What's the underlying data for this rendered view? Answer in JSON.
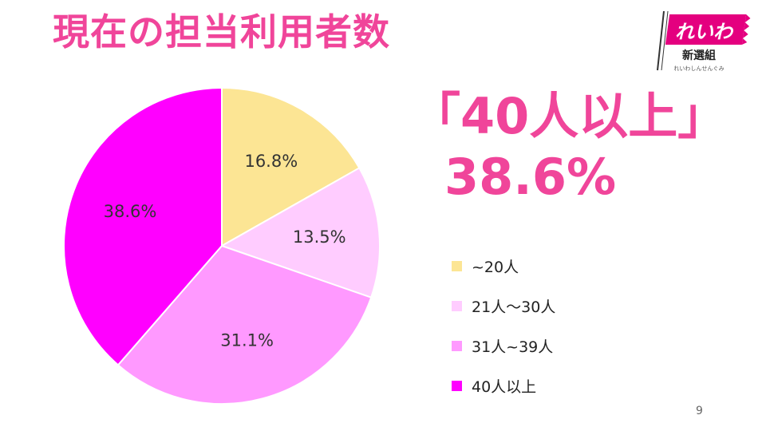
{
  "slide": {
    "title": "現在の担当利用者数",
    "page_number": "9"
  },
  "logo": {
    "main_text": "れいわ",
    "sub_text": "新選組",
    "small_text": "れいわしんせんぐみ",
    "color": "#e4007f"
  },
  "highlight": {
    "label": "「40人以上」",
    "value": "38.6%"
  },
  "chart_data": {
    "type": "pie",
    "categories": [
      "~20人",
      "21人～30人",
      "31人~39人",
      "40人以上"
    ],
    "values": [
      16.8,
      13.5,
      31.1,
      38.6
    ],
    "data_labels": [
      "16.8%",
      "13.5%",
      "31.1%",
      "38.6%"
    ],
    "colors": [
      "#fce594",
      "#ffccff",
      "#ff99ff",
      "#ff00ff"
    ],
    "start_angle": "12 o'clock",
    "direction": "clockwise",
    "legend_position": "right",
    "title": ""
  }
}
